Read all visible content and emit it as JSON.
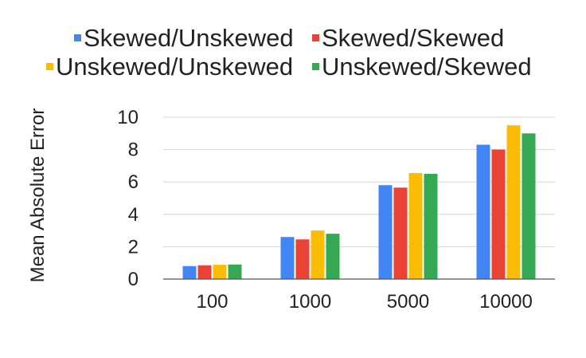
{
  "chart_data": {
    "type": "bar",
    "title": "",
    "xlabel": "",
    "ylabel": "Mean Absolute Error",
    "categories": [
      "100",
      "1000",
      "5000",
      "10000"
    ],
    "ylim": [
      0,
      10
    ],
    "yticks": [
      "0",
      "2",
      "4",
      "6",
      "8",
      "10"
    ],
    "grid": true,
    "legend_position": "top",
    "series": [
      {
        "name": "Skewed/Unskewed",
        "color": "#4285f4",
        "values": [
          0.8,
          2.6,
          5.8,
          8.3
        ]
      },
      {
        "name": "Skewed/Skewed",
        "color": "#ea4335",
        "values": [
          0.85,
          2.45,
          5.65,
          8.0
        ]
      },
      {
        "name": "Unskewed/Unskewed",
        "color": "#fbbc04",
        "values": [
          0.88,
          3.0,
          6.55,
          9.5
        ]
      },
      {
        "name": "Unskewed/Skewed",
        "color": "#34a853",
        "values": [
          0.9,
          2.8,
          6.5,
          9.0
        ]
      }
    ]
  }
}
